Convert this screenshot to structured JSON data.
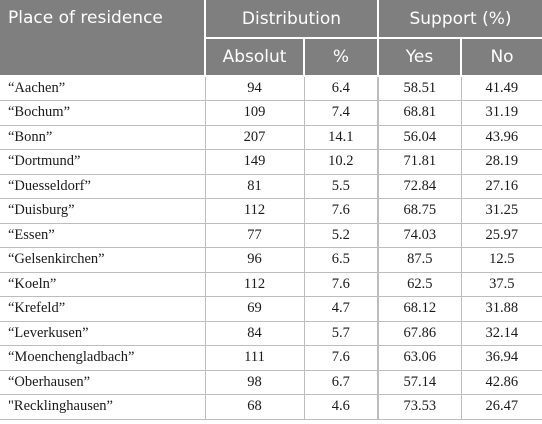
{
  "header": {
    "place": "Place of residence",
    "distribution": "Distribution",
    "support": "Support (%)",
    "absolut": "Absolut",
    "percent": "%",
    "yes": "Yes",
    "no": "No"
  },
  "rows": [
    {
      "place": "“Aachen”",
      "absolut": "94",
      "percent": "6.4",
      "yes": "58.51",
      "no": "41.49"
    },
    {
      "place": "“Bochum”",
      "absolut": "109",
      "percent": "7.4",
      "yes": "68.81",
      "no": "31.19"
    },
    {
      "place": "“Bonn”",
      "absolut": "207",
      "percent": "14.1",
      "yes": "56.04",
      "no": "43.96"
    },
    {
      "place": "“Dortmund”",
      "absolut": "149",
      "percent": "10.2",
      "yes": "71.81",
      "no": "28.19"
    },
    {
      "place": "“Duesseldorf”",
      "absolut": "81",
      "percent": "5.5",
      "yes": "72.84",
      "no": "27.16"
    },
    {
      "place": "“Duisburg”",
      "absolut": "112",
      "percent": "7.6",
      "yes": "68.75",
      "no": "31.25"
    },
    {
      "place": "“Essen”",
      "absolut": "77",
      "percent": "5.2",
      "yes": "74.03",
      "no": "25.97"
    },
    {
      "place": "“Gelsenkirchen”",
      "absolut": "96",
      "percent": "6.5",
      "yes": "87.5",
      "no": "12.5"
    },
    {
      "place": "“Koeln”",
      "absolut": "112",
      "percent": "7.6",
      "yes": "62.5",
      "no": "37.5"
    },
    {
      "place": "“Krefeld”",
      "absolut": "69",
      "percent": "4.7",
      "yes": "68.12",
      "no": "31.88"
    },
    {
      "place": "“Leverkusen”",
      "absolut": "84",
      "percent": "5.7",
      "yes": "67.86",
      "no": "32.14"
    },
    {
      "place": "“Moenchengladbach”",
      "absolut": "111",
      "percent": "7.6",
      "yes": "63.06",
      "no": "36.94"
    },
    {
      "place": "“Oberhausen”",
      "absolut": "98",
      "percent": "6.7",
      "yes": "57.14",
      "no": "42.86"
    },
    {
      "place": "\"Recklinghausen”",
      "absolut": "68",
      "percent": "4.6",
      "yes": "73.53",
      "no": "26.47"
    }
  ]
}
